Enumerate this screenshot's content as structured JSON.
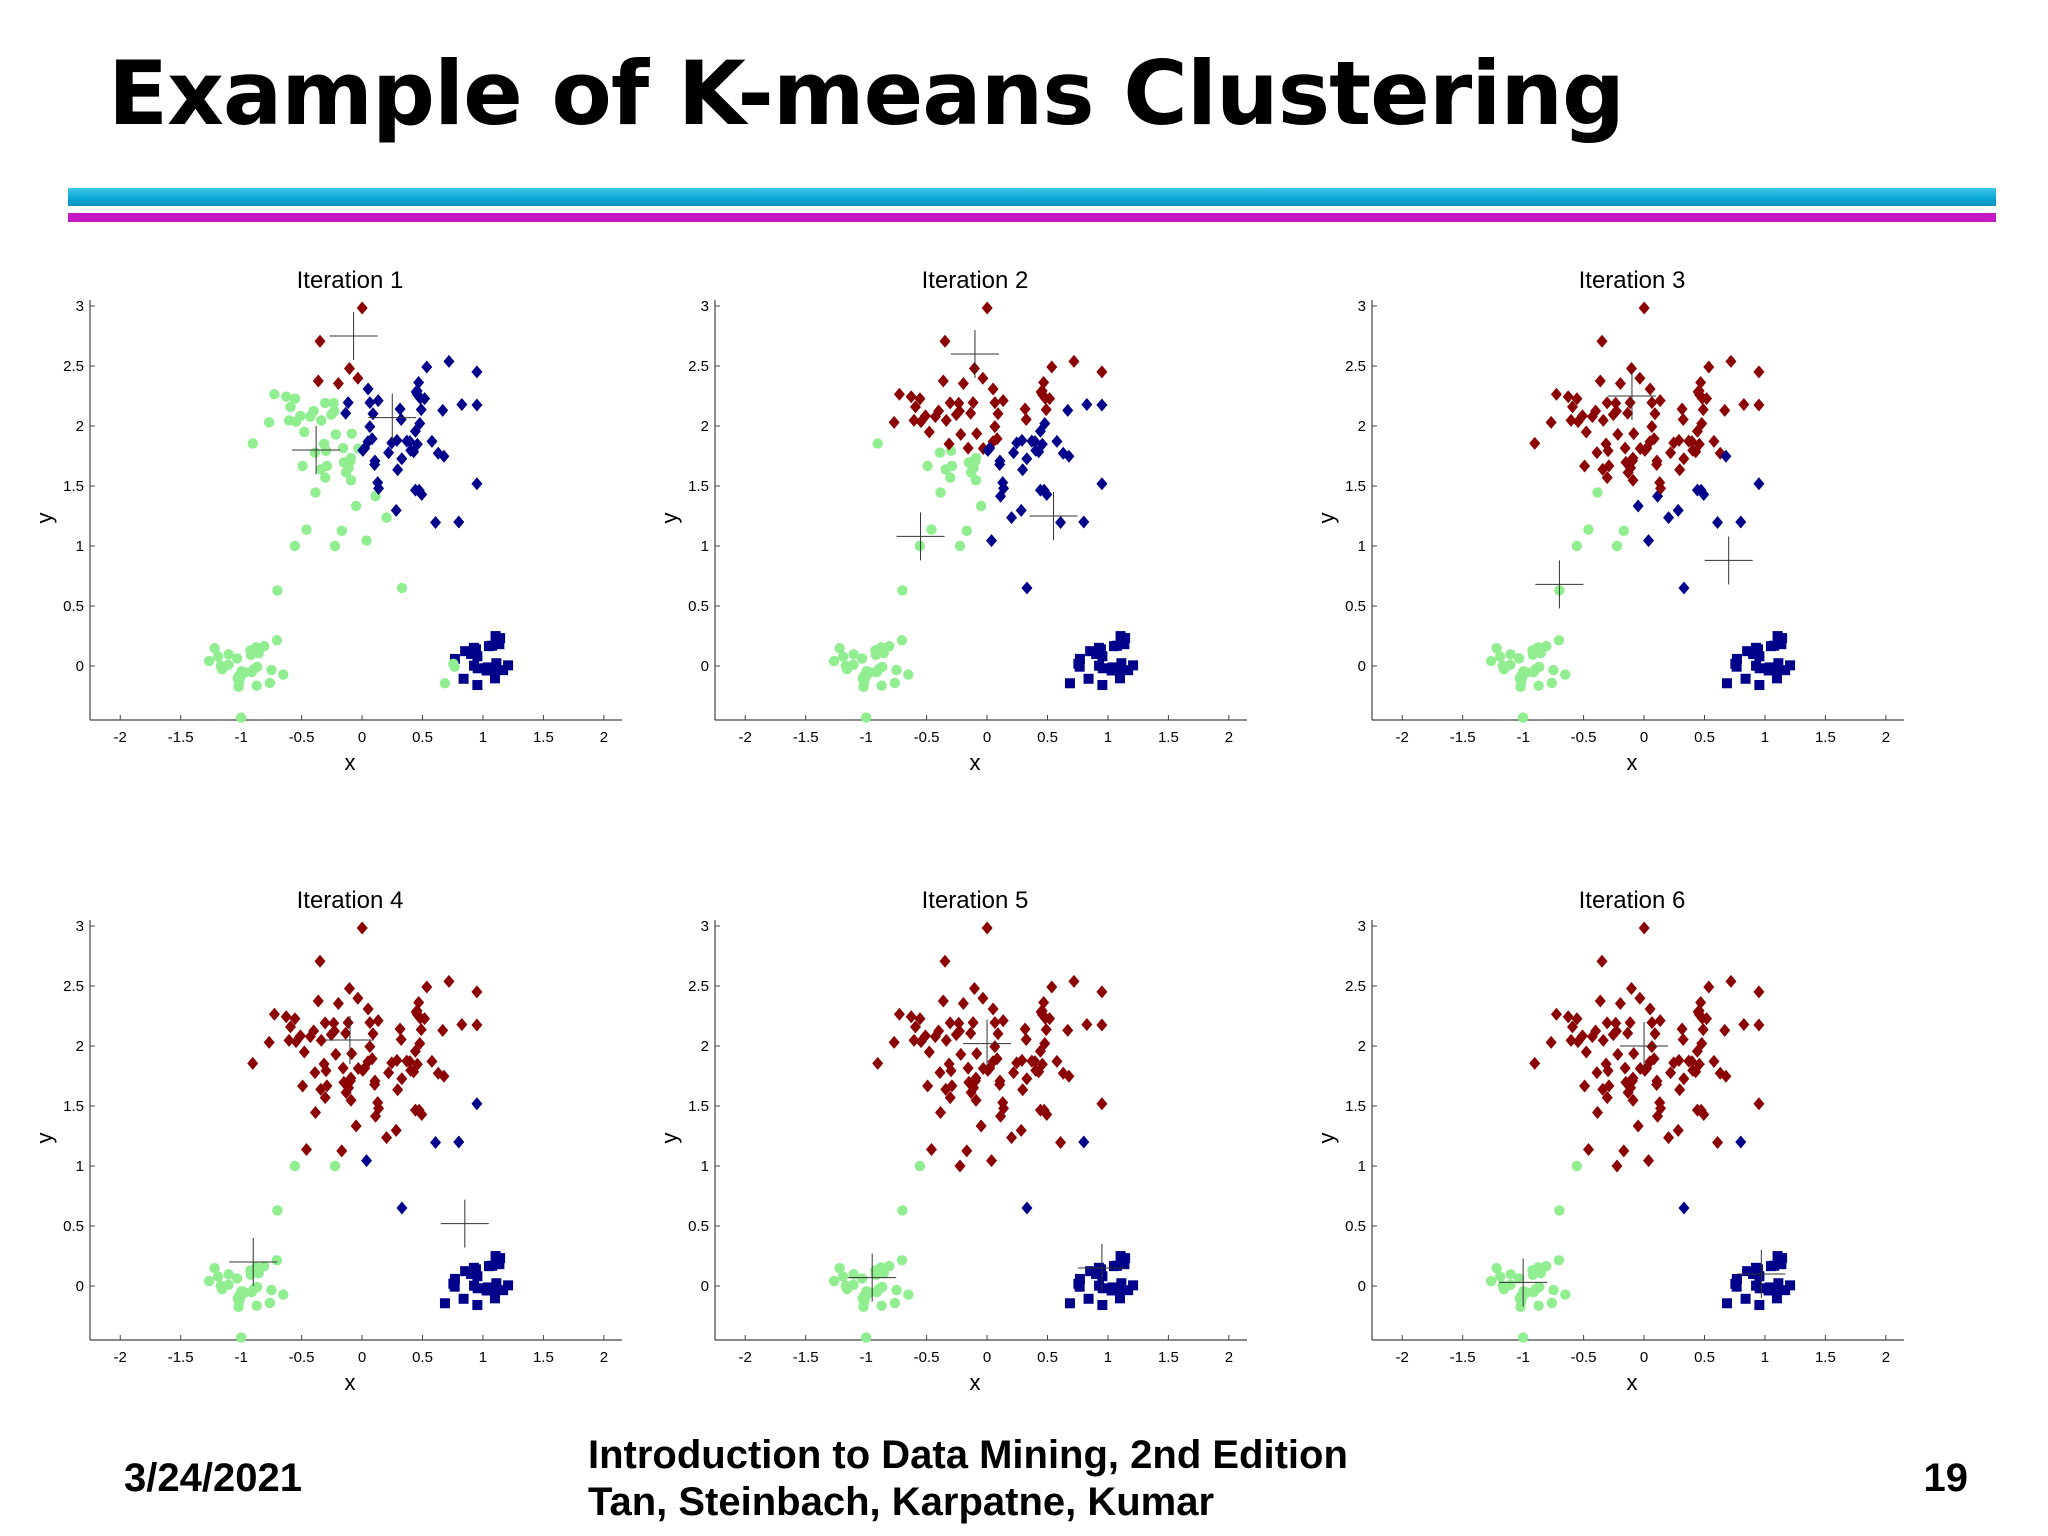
{
  "slide": {
    "title": "Example of K-means Clustering",
    "footer_date": "3/24/2021",
    "footer_book_line1": "Introduction to Data Mining, 2nd Edition",
    "footer_book_line2": "Tan, Steinbach, Karpatne, Kumar",
    "page_number": "19"
  },
  "colors": {
    "cluster_red": "#8b0000",
    "cluster_green": "#90ee90",
    "cluster_blue": "#00008b",
    "accent_cyan": "#0aa6d8",
    "accent_magenta": "#c418c4"
  },
  "chart_data": [
    {
      "type": "scatter",
      "title": "Iteration 1",
      "xlabel": "x",
      "ylabel": "y",
      "xlim": [
        -2.25,
        2.15
      ],
      "ylim": [
        -0.45,
        3.05
      ],
      "xticks": [
        "-2",
        "-1.5",
        "-1",
        "-0.5",
        "0",
        "0.5",
        "1",
        "1.5",
        "2"
      ],
      "yticks": [
        "0",
        "0.5",
        "1",
        "1.5",
        "2",
        "2.5",
        "3"
      ],
      "centroids": [
        [
          -0.07,
          2.75
        ],
        [
          0.25,
          2.07
        ],
        [
          -0.38,
          1.8
        ]
      ],
      "boundary_x": [
        -0.05,
        0.25
      ],
      "boundary_y": -9,
      "boundary_y_shift": 0
    },
    {
      "type": "scatter",
      "title": "Iteration 2",
      "xlabel": "x",
      "ylabel": "y",
      "xlim": [
        -2.25,
        2.15
      ],
      "ylim": [
        -0.45,
        3.05
      ],
      "xticks": [
        "-2",
        "-1.5",
        "-1",
        "-0.5",
        "0",
        "0.5",
        "1",
        "1.5",
        "2"
      ],
      "yticks": [
        "0",
        "0.5",
        "1",
        "1.5",
        "2",
        "2.5",
        "3"
      ],
      "centroids": [
        [
          -0.1,
          2.6
        ],
        [
          0.55,
          1.25
        ],
        [
          -0.55,
          1.08
        ]
      ],
      "boundary_x": [
        -0.3,
        0.15
      ],
      "boundary_y": 1.55,
      "boundary_y_shift": 0
    },
    {
      "type": "scatter",
      "title": "Iteration 3",
      "xlabel": "x",
      "ylabel": "y",
      "xlim": [
        -2.25,
        2.15
      ],
      "ylim": [
        -0.45,
        3.05
      ],
      "xticks": [
        "-2",
        "-1.5",
        "-1",
        "-0.5",
        "0",
        "0.5",
        "1",
        "1.5",
        "2"
      ],
      "yticks": [
        "0",
        "0.5",
        "1",
        "1.5",
        "2",
        "2.5",
        "3"
      ],
      "centroids": [
        [
          -0.1,
          2.25
        ],
        [
          0.7,
          0.88
        ],
        [
          -0.7,
          0.68
        ]
      ],
      "boundary_x": [
        -0.9,
        0.65
      ],
      "boundary_y": 1.3,
      "boundary_y_shift": 0
    },
    {
      "type": "scatter",
      "title": "Iteration 4",
      "xlabel": "x",
      "ylabel": "y",
      "xlim": [
        -2.25,
        2.15
      ],
      "ylim": [
        -0.45,
        3.05
      ],
      "xticks": [
        "-2",
        "-1.5",
        "-1",
        "-0.5",
        "0",
        "0.5",
        "1",
        "1.5",
        "2"
      ],
      "yticks": [
        "0",
        "0.5",
        "1",
        "1.5",
        "2",
        "2.5",
        "3"
      ],
      "centroids": [
        [
          -0.1,
          2.05
        ],
        [
          0.85,
          0.52
        ],
        [
          -0.9,
          0.2
        ]
      ],
      "boundary_x": [
        -0.9,
        0.6
      ],
      "boundary_y": 0.9,
      "boundary_y_shift": 0
    },
    {
      "type": "scatter",
      "title": "Iteration 5",
      "xlabel": "x",
      "ylabel": "y",
      "xlim": [
        -2.25,
        2.15
      ],
      "ylim": [
        -0.45,
        3.05
      ],
      "xticks": [
        "-2",
        "-1.5",
        "-1",
        "-0.5",
        "0",
        "0.5",
        "1",
        "1.5",
        "2"
      ],
      "yticks": [
        "0",
        "0.5",
        "1",
        "1.5",
        "2",
        "2.5",
        "3"
      ],
      "centroids": [
        [
          0.0,
          2.02
        ],
        [
          0.95,
          0.15
        ],
        [
          -0.95,
          0.07
        ]
      ],
      "boundary_x": [
        -0.9,
        0.6
      ],
      "boundary_y": 0.9,
      "boundary_y_shift": 0
    },
    {
      "type": "scatter",
      "title": "Iteration 6",
      "xlabel": "x",
      "ylabel": "y",
      "xlim": [
        -2.25,
        2.15
      ],
      "ylim": [
        -0.45,
        3.05
      ],
      "xticks": [
        "-2",
        "-1.5",
        "-1",
        "-0.5",
        "0",
        "0.5",
        "1",
        "1.5",
        "2"
      ],
      "yticks": [
        "0",
        "0.5",
        "1",
        "1.5",
        "2",
        "2.5",
        "3"
      ],
      "centroids": [
        [
          0.0,
          2.0
        ],
        [
          0.97,
          0.1
        ],
        [
          -1.0,
          0.03
        ]
      ],
      "boundary_x": [
        -0.9,
        0.6
      ],
      "boundary_y": 0.9,
      "boundary_y_shift": 0
    }
  ]
}
